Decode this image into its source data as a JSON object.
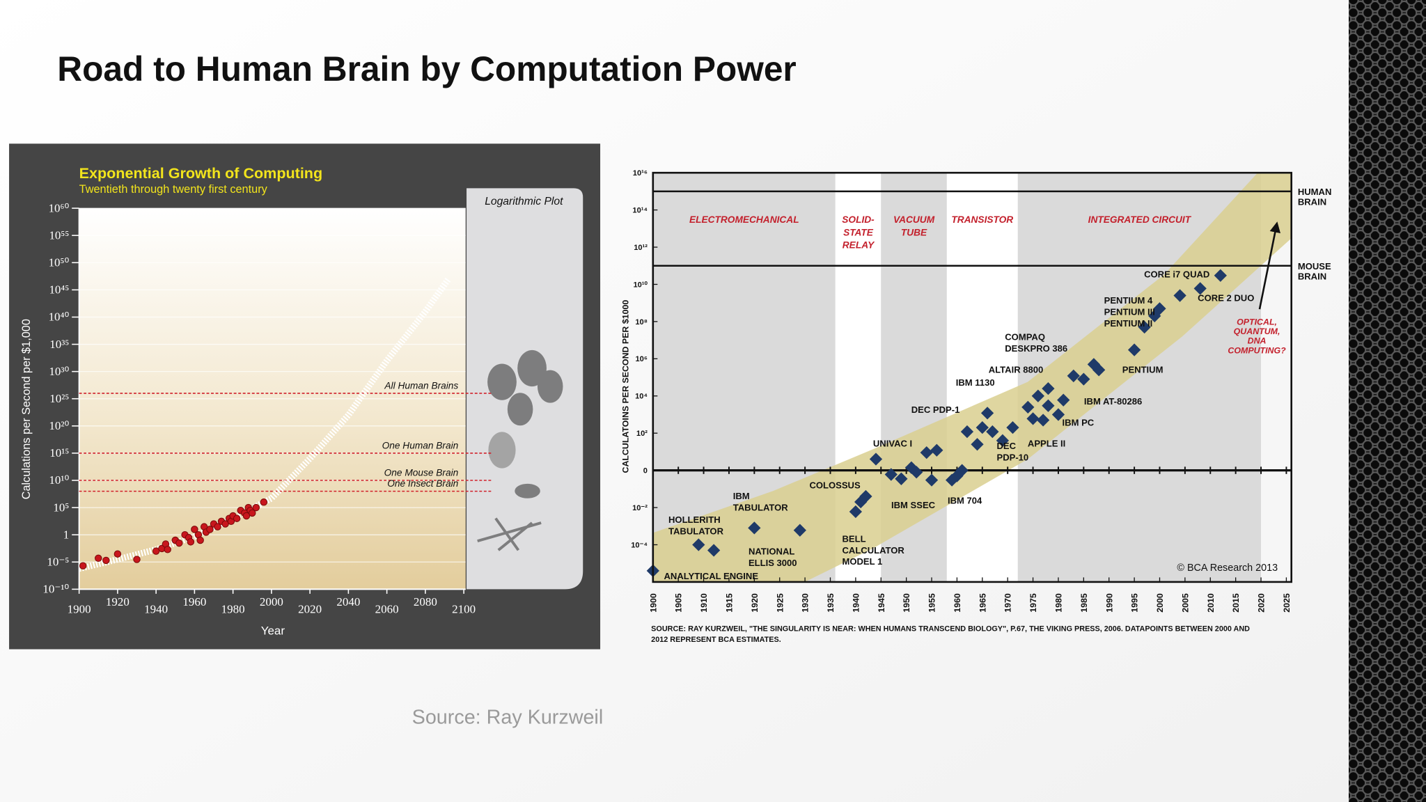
{
  "title": "Road to Human Brain by Computation Power",
  "source": "Source: Ray Kurzweil",
  "chart_data": [
    {
      "type": "scatter",
      "title": "Exponential Growth of Computing",
      "subtitle": "Twentieth through twenty first century",
      "panel_label": "Logarithmic Plot",
      "xlabel": "Year",
      "ylabel": "Calculations per Second per $1,000",
      "log_scale": true,
      "grid": true,
      "xlim": [
        1900,
        2100
      ],
      "xticks": [
        1900,
        1920,
        1940,
        1960,
        1980,
        2000,
        2020,
        2040,
        2060,
        2080,
        2100
      ],
      "ylim": [
        1e-10,
        1e+60
      ],
      "yticks": [
        {
          "value": 1e+60,
          "label": "10⁶⁰"
        },
        {
          "value": 1e+55,
          "label": "10⁵⁵"
        },
        {
          "value": 1e+50,
          "label": "10⁵⁰"
        },
        {
          "value": 1e+45,
          "label": "10⁴⁵"
        },
        {
          "value": 1e+40,
          "label": "10⁴⁰"
        },
        {
          "value": 1e+35,
          "label": "10³⁵"
        },
        {
          "value": 1e+30,
          "label": "10³⁰"
        },
        {
          "value": 1e+25,
          "label": "10²⁵"
        },
        {
          "value": 1e+20,
          "label": "10²⁰"
        },
        {
          "value": 1000000000000000.0,
          "label": "10¹⁵"
        },
        {
          "value": 10000000000.0,
          "label": "10¹⁰"
        },
        {
          "value": 100000.0,
          "label": "10⁵"
        },
        1,
        {
          "value": 1e-05,
          "label": "10⁻⁵"
        },
        {
          "value": 1e-10,
          "label": "10⁻¹⁰"
        }
      ],
      "reference_lines": [
        {
          "label": "All Human Brains",
          "value": 1e+26
        },
        {
          "label": "One Human Brain",
          "value": 1000000000000000.0
        },
        {
          "label": "One Mouse Brain",
          "value": 10000000000.0
        },
        {
          "label": "One Insect Brain",
          "value": 100000000.0
        }
      ],
      "reference_color": "#d0202a",
      "series": [
        {
          "marker": "line",
          "color": "#ffffff",
          "x": [
            1900,
            1920,
            1940,
            1960,
            1980,
            2000,
            2020,
            2040,
            2060,
            2080,
            2092
          ],
          "values": [
            6e-07,
            3e-05,
            0.002,
            0.5,
            1000,
            5000000.0,
            100000000000000.0,
            1e+22,
            1e+32,
            1e+41,
            1e+47
          ]
        },
        {
          "marker": "circle",
          "color": "#c8161d",
          "x": [
            1902,
            1910,
            1914,
            1920,
            1930,
            1940,
            1943,
            1945,
            1946,
            1950,
            1952,
            1955,
            1957,
            1958,
            1960,
            1962,
            1963,
            1965,
            1966,
            1968,
            1970,
            1972,
            1974,
            1976,
            1978,
            1979,
            1980,
            1982,
            1984,
            1986,
            1987,
            1988,
            1989,
            1990,
            1992,
            1996
          ],
          "values": [
            2e-06,
            5e-05,
            2e-05,
            0.0003,
            3e-05,
            0.001,
            0.003,
            0.02,
            0.002,
            0.1,
            0.03,
            1,
            0.3,
            0.05,
            10,
            1,
            0.1,
            30,
            3,
            10,
            100,
            30,
            300,
            100,
            1000,
            300,
            3000,
            1000,
            30000,
            10000,
            3000,
            100000,
            30000,
            10000,
            100000,
            1000000
          ]
        }
      ]
    },
    {
      "type": "scatter",
      "ylabel": "CALCULATOINS PER SECOND PER $1000",
      "log_scale": true,
      "zero_line": true,
      "xlim": [
        1900,
        2026
      ],
      "xticks": [
        1900,
        1905,
        1910,
        1915,
        1920,
        1925,
        1930,
        1935,
        1940,
        1945,
        1950,
        1955,
        1960,
        1965,
        1970,
        1975,
        1980,
        1985,
        1990,
        1995,
        2000,
        2005,
        2010,
        2015,
        2020,
        2025
      ],
      "ylim": [
        1e-06,
        1e+16
      ],
      "yticks": [
        {
          "value": 0.0001,
          "label": "10⁻⁴"
        },
        {
          "value": 0.01,
          "label": "10⁻²"
        },
        {
          "value": 1,
          "label": "0"
        },
        {
          "value": 100,
          "label": "10²"
        },
        {
          "value": 10000.0,
          "label": "10⁴"
        },
        {
          "value": 1000000.0,
          "label": "10⁶"
        },
        {
          "value": 100000000.0,
          "label": "10⁸"
        },
        {
          "value": 10000000000.0,
          "label": "10¹⁰"
        },
        {
          "value": 1000000000000.0,
          "label": "10¹²"
        },
        {
          "value": 100000000000000.0,
          "label": "10¹⁴"
        },
        {
          "value": 1e+16,
          "label": "10¹⁶"
        }
      ],
      "eras": [
        {
          "label": [
            "ELECTROMECHANICAL"
          ],
          "start": 1900,
          "end": 1936,
          "shaded": true
        },
        {
          "label": [
            "SOLID-",
            "STATE",
            "RELAY"
          ],
          "start": 1936,
          "end": 1945,
          "shaded": false
        },
        {
          "label": [
            "VACUUM",
            "TUBE"
          ],
          "start": 1945,
          "end": 1958,
          "shaded": true
        },
        {
          "label": [
            "TRANSISTOR"
          ],
          "start": 1958,
          "end": 1972,
          "shaded": false
        },
        {
          "label": [
            "INTEGRATED CIRCUIT"
          ],
          "start": 1972,
          "end": 2020,
          "shaded": true
        }
      ],
      "reference_lines": [
        {
          "label": [
            "HUMAN",
            "BRAIN"
          ],
          "value": 1000000000000000.0
        },
        {
          "label": [
            "MOUSE",
            "BRAIN"
          ],
          "value": 100000000000.0
        }
      ],
      "series": [
        {
          "marker": "diamond",
          "color": "#1f3a68",
          "x": [
            1900,
            1909,
            1912,
            1920,
            1929,
            1940,
            1941,
            1942,
            1944,
            1947,
            1949,
            1951,
            1952,
            1954,
            1955,
            1956,
            1959,
            1960,
            1961,
            1962,
            1964,
            1965,
            1966,
            1967,
            1969,
            1971,
            1974,
            1975,
            1976,
            1977,
            1978,
            1978,
            1980,
            1981,
            1983,
            1985,
            1987,
            1988,
            1995,
            1997,
            1999,
            2000,
            2004,
            2008,
            2012
          ],
          "values": [
            4e-06,
            0.0001,
            5e-05,
            0.0008,
            0.0006,
            0.006,
            0.02,
            0.04,
            4,
            0.6,
            0.35,
            1.4,
            0.8,
            9,
            0.3,
            12,
            0.3,
            0.5,
            1,
            120,
            25,
            200,
            1200,
            120,
            40,
            200,
            2500,
            600,
            10000,
            500,
            25000,
            3000,
            1000,
            6000,
            120000,
            80000,
            500000,
            250000,
            3000000.0,
            50000000.0,
            200000000.0,
            500000000.0,
            2500000000.0,
            6000000000.0,
            30000000000.0
          ]
        }
      ],
      "annotations": [
        [
          "ANALYTICAL ENGINE"
        ],
        [
          "HOLLERITH",
          "TABULATOR"
        ],
        [
          "IBM",
          "TABULATOR"
        ],
        [
          "NATIONAL",
          "ELLIS 3000"
        ],
        [
          "BELL",
          "CALCULATOR",
          "MODEL 1"
        ],
        [
          "COLOSSUS"
        ],
        [
          "UNIVAC I"
        ],
        [
          "IBM SSEC"
        ],
        [
          "IBM 704"
        ],
        [
          "DEC PDP-1"
        ],
        [
          "IBM 1130"
        ],
        [
          "ALTAIR 8800"
        ],
        [
          "COMPAQ",
          "DESKPRO 386"
        ],
        [
          "DEC",
          "PDP-10"
        ],
        [
          "APPLE II"
        ],
        [
          "IBM PC"
        ],
        [
          "IBM AT-80286"
        ],
        [
          "PENTIUM"
        ],
        [
          "PENTIUM 4",
          "PENTIUM III",
          "PENTIUM II"
        ],
        [
          "CORE 2 DUO"
        ],
        [
          "CORE i7 QUAD"
        ]
      ],
      "note": [
        "OPTICAL,",
        "QUANTUM,",
        "DNA",
        "COMPUTING?"
      ],
      "copyright": "© BCA Research 2013",
      "source": [
        "SOURCE: RAY KURZWEIL, \"THE SINGULARITY IS NEAR: WHEN HUMANS TRANSCEND BIOLOGY\", P.67, THE VIKING PRESS, 2006. DATAPOINTS BETWEEN 2000 AND",
        "2012 REPRESENT BCA ESTIMATES."
      ]
    }
  ]
}
